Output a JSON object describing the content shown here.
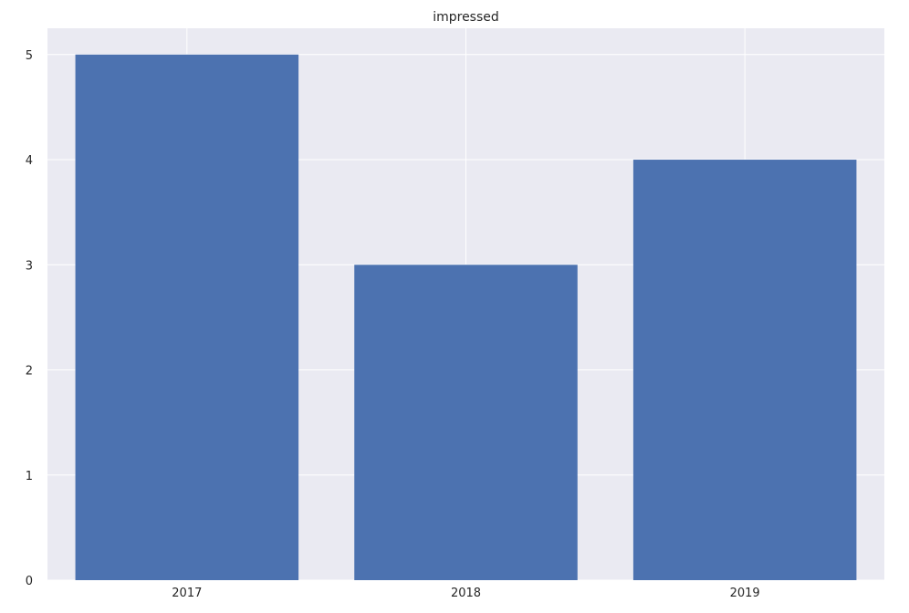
{
  "chart_data": {
    "type": "bar",
    "title": "impressed",
    "xlabel": "",
    "ylabel": "",
    "categories": [
      "2017",
      "2018",
      "2019"
    ],
    "values": [
      5,
      3,
      4
    ],
    "ylim": [
      0,
      5.25
    ],
    "yticks": [
      0,
      1,
      2,
      3,
      4,
      5
    ],
    "grid": true,
    "legend": "none",
    "colors": {
      "bar": "#4c72b0",
      "plot_background": "#eaeaf2",
      "grid": "#ffffff",
      "text": "#262626"
    }
  }
}
